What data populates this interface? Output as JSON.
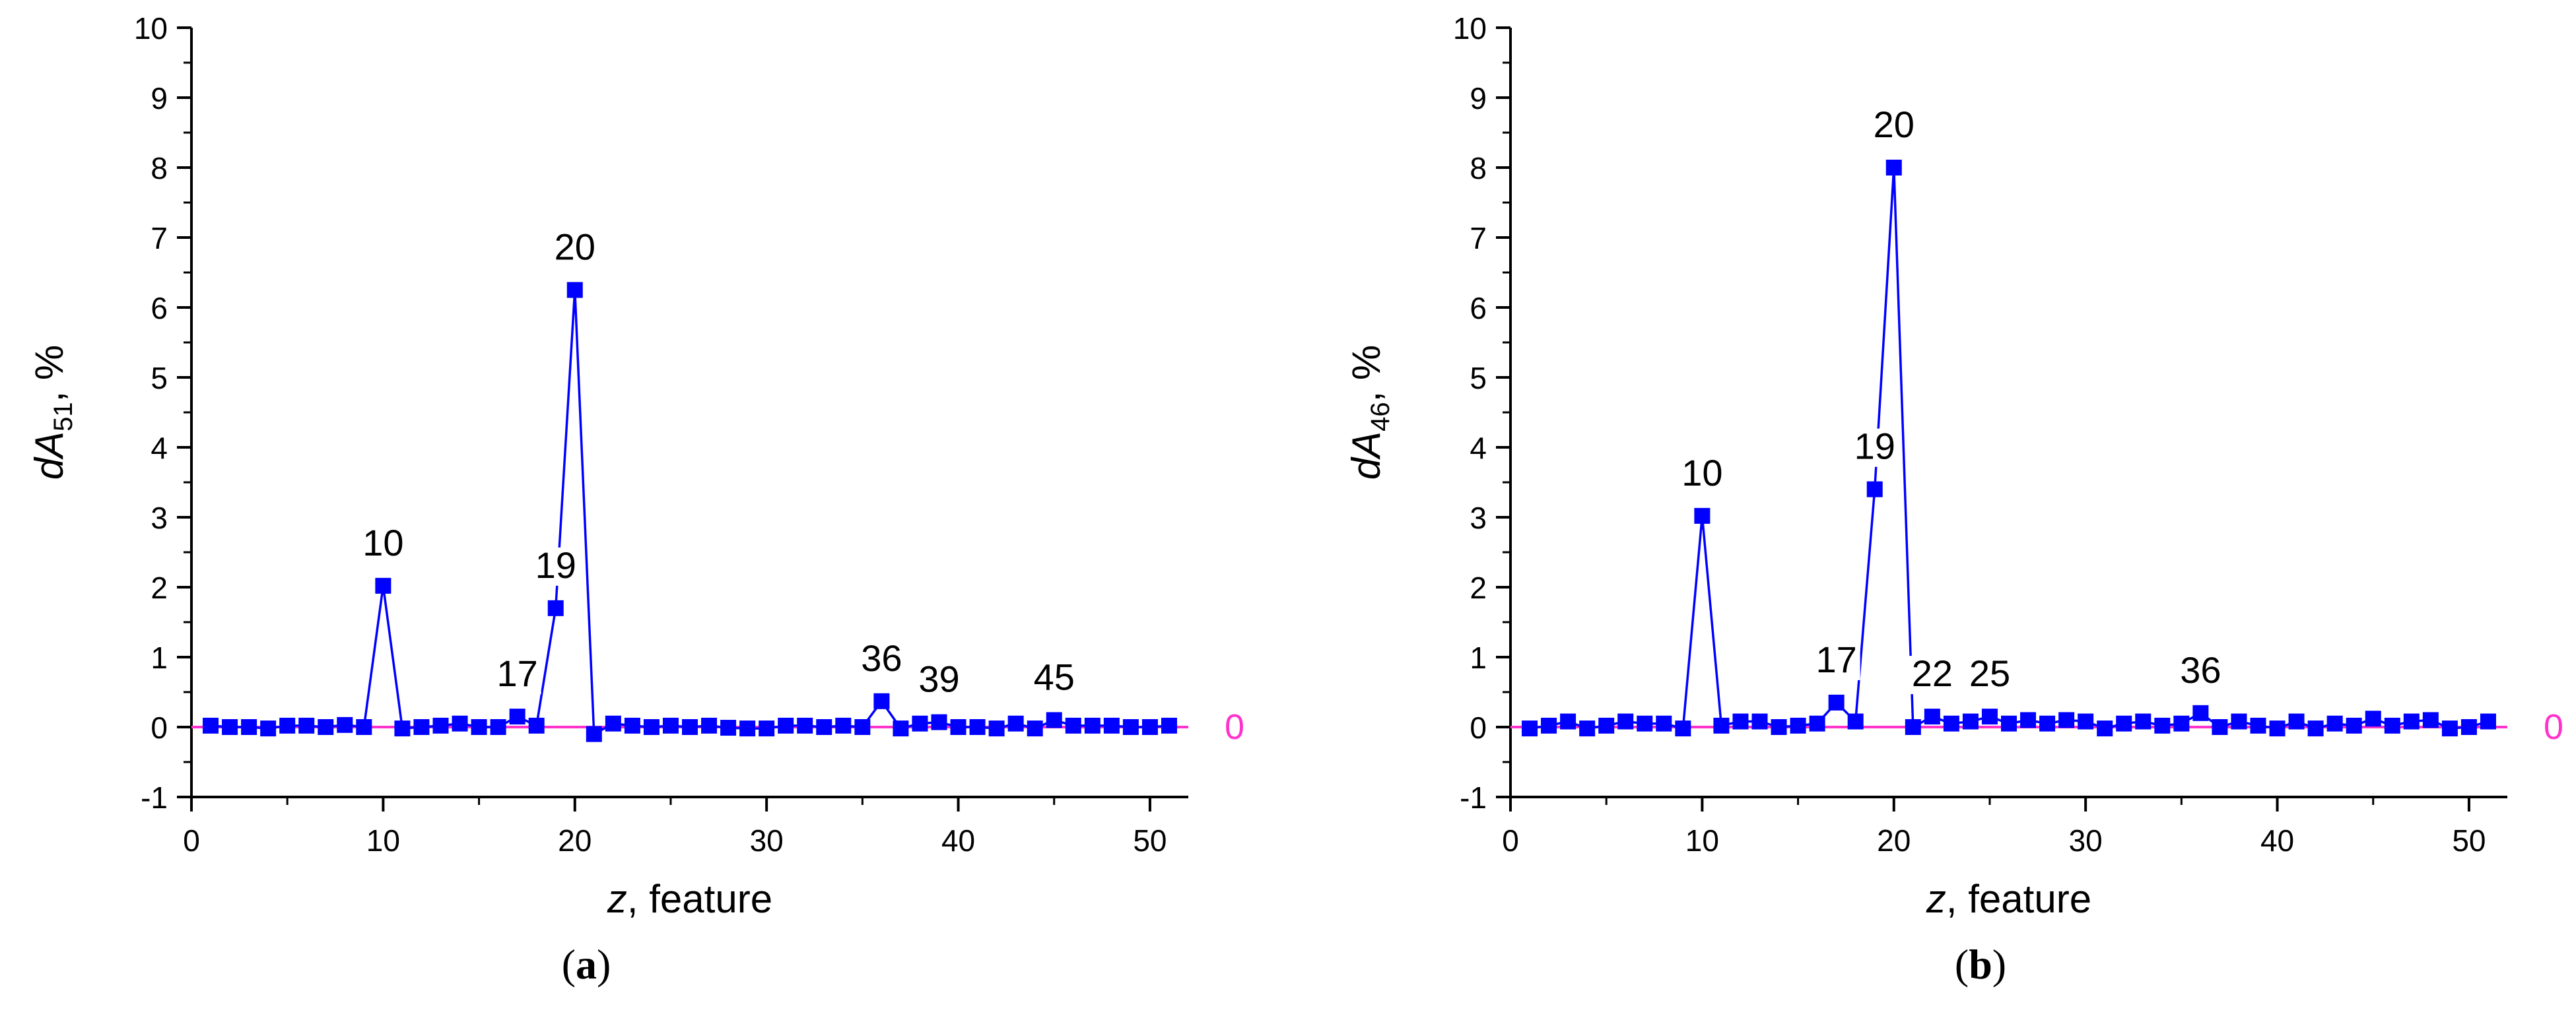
{
  "chart_data": [
    {
      "type": "line",
      "panel_label": "a",
      "xlabel_var": "z",
      "xlabel_rest": ", feature",
      "ylabel_var": "dA",
      "ylabel_sub": "51",
      "ylabel_rest": ", %",
      "xlim": [
        0,
        52
      ],
      "ylim": [
        -1,
        10
      ],
      "xticks": [
        0,
        10,
        20,
        30,
        40,
        50
      ],
      "yticks": [
        -1,
        0,
        1,
        2,
        3,
        4,
        5,
        6,
        7,
        8,
        9,
        10
      ],
      "grid": false,
      "zero_line_label": "0",
      "series": [
        {
          "x": [
            1,
            2,
            3,
            4,
            5,
            6,
            7,
            8,
            9,
            10,
            11,
            12,
            13,
            14,
            15,
            16,
            17,
            18,
            19,
            20,
            21,
            22,
            23,
            24,
            25,
            26,
            27,
            28,
            29,
            30,
            31,
            32,
            33,
            34,
            35,
            36,
            37,
            38,
            39,
            40,
            41,
            42,
            43,
            44,
            45,
            46,
            47,
            48,
            49,
            50,
            51
          ],
          "values": [
            0.02,
            0,
            0,
            -0.02,
            0.02,
            0.02,
            0,
            0.03,
            0,
            2.02,
            -0.02,
            0,
            0.02,
            0.05,
            0,
            0,
            0.15,
            0.02,
            1.7,
            6.25,
            -0.1,
            0.05,
            0.02,
            0,
            0.02,
            0,
            0.02,
            -0.01,
            -0.02,
            -0.02,
            0.02,
            0.02,
            0,
            0.02,
            0,
            0.37,
            -0.02,
            0.05,
            0.07,
            0,
            0,
            -0.02,
            0.05,
            -0.02,
            0.1,
            0.02,
            0.02,
            0.02,
            0,
            0,
            0.02
          ]
        }
      ],
      "annotations": [
        {
          "text": "10",
          "x": 10,
          "y": 2.02
        },
        {
          "text": "17",
          "x": 17,
          "y": 0.15
        },
        {
          "text": "19",
          "x": 19,
          "y": 1.7
        },
        {
          "text": "20",
          "x": 20,
          "y": 6.25
        },
        {
          "text": "36",
          "x": 36,
          "y": 0.37
        },
        {
          "text": "39",
          "x": 39,
          "y": 0.07
        },
        {
          "text": "45",
          "x": 45,
          "y": 0.1
        }
      ]
    },
    {
      "type": "line",
      "panel_label": "b",
      "xlabel_var": "z",
      "xlabel_rest": ", feature",
      "ylabel_var": "dA",
      "ylabel_sub": "46",
      "ylabel_rest": ", %",
      "xlim": [
        0,
        52
      ],
      "ylim": [
        -1,
        10
      ],
      "xticks": [
        0,
        10,
        20,
        30,
        40,
        50
      ],
      "yticks": [
        -1,
        0,
        1,
        2,
        3,
        4,
        5,
        6,
        7,
        8,
        9,
        10
      ],
      "grid": false,
      "zero_line_label": "0",
      "series": [
        {
          "x": [
            1,
            2,
            3,
            4,
            5,
            6,
            7,
            8,
            9,
            10,
            11,
            12,
            13,
            14,
            15,
            16,
            17,
            18,
            19,
            20,
            21,
            22,
            23,
            24,
            25,
            26,
            27,
            28,
            29,
            30,
            31,
            32,
            33,
            34,
            35,
            36,
            37,
            38,
            39,
            40,
            41,
            42,
            43,
            44,
            45,
            46,
            47,
            48,
            49,
            50,
            51
          ],
          "values": [
            -0.02,
            0.02,
            0.08,
            -0.02,
            0.02,
            0.08,
            0.05,
            0.05,
            -0.02,
            3.02,
            0.02,
            0.08,
            0.08,
            0,
            0.02,
            0.05,
            0.35,
            0.08,
            3.4,
            8.0,
            0,
            0.15,
            0.05,
            0.08,
            0.15,
            0.05,
            0.1,
            0.05,
            0.1,
            0.08,
            -0.02,
            0.05,
            0.08,
            0.02,
            0.05,
            0.2,
            0,
            0.08,
            0.02,
            -0.02,
            0.08,
            -0.02,
            0.05,
            0.02,
            0.12,
            0.02,
            0.08,
            0.1,
            -0.02,
            0,
            0.08
          ]
        }
      ],
      "annotations": [
        {
          "text": "10",
          "x": 10,
          "y": 3.02
        },
        {
          "text": "17",
          "x": 17,
          "y": 0.35
        },
        {
          "text": "19",
          "x": 19,
          "y": 3.4
        },
        {
          "text": "20",
          "x": 20,
          "y": 8.0
        },
        {
          "text": "22",
          "x": 22,
          "y": 0.15
        },
        {
          "text": "25",
          "x": 25,
          "y": 0.15
        },
        {
          "text": "36",
          "x": 36,
          "y": 0.2
        }
      ]
    }
  ],
  "colors": {
    "series": "#0000ff",
    "zero_line": "#ff33cc",
    "axes": "#000000"
  }
}
